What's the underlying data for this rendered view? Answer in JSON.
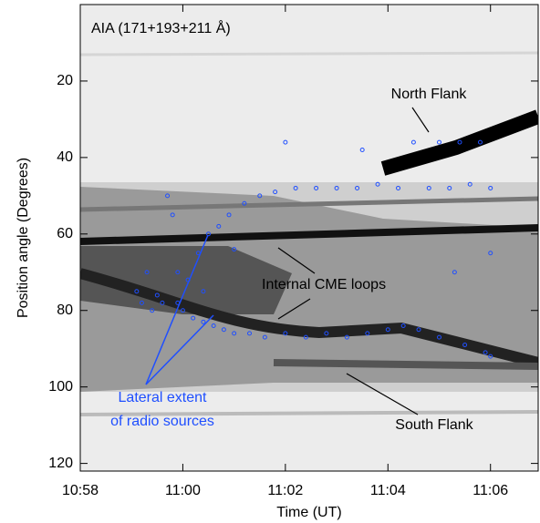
{
  "chart_data": {
    "type": "scatter",
    "title": "AIA (171+193+211 Å)",
    "x_label": "Time (UT)",
    "y_label": "Position angle (Degrees)",
    "annotations": [
      "North Flank",
      "Internal CME loops",
      "South Flank",
      "Lateral extent",
      "of radio sources"
    ],
    "color": "#1f4fff",
    "x": [
      59.1,
      59.2,
      59.3,
      59.4,
      59.5,
      59.6,
      59.7,
      59.8,
      59.9,
      60.0,
      60.1,
      60.2,
      60.3,
      60.4,
      60.5,
      60.6,
      60.7,
      60.8,
      60.9,
      61.0,
      61.2,
      61.3,
      61.5,
      61.6,
      61.8,
      62.0,
      62.2,
      62.4,
      62.6,
      62.8,
      63.0,
      63.2,
      63.4,
      63.6,
      63.8,
      64.0,
      64.2,
      64.3,
      64.5,
      64.6,
      64.8,
      65.0,
      65.0,
      65.2,
      65.4,
      65.5,
      65.6,
      65.8,
      65.9,
      66.0,
      66.0,
      62.0,
      63.5,
      65.3,
      66.0,
      61.0,
      59.9,
      60.4
    ],
    "values": [
      75,
      78,
      70,
      80,
      76,
      78,
      50,
      55,
      78,
      80,
      72,
      82,
      65,
      83,
      60,
      84,
      58,
      85,
      55,
      86,
      52,
      86,
      50,
      87,
      49,
      86,
      48,
      87,
      48,
      86,
      48,
      87,
      48,
      86,
      47,
      85,
      48,
      84,
      36,
      85,
      48,
      36,
      87,
      48,
      36,
      89,
      47,
      36,
      91,
      92,
      48,
      36,
      38,
      70,
      65,
      64,
      70,
      75
    ],
    "xlim": [
      58,
      66.93
    ],
    "ylim": [
      122,
      0
    ],
    "xticks": [
      {
        "value": 58,
        "label": "10:58"
      },
      {
        "value": 60,
        "label": "11:00"
      },
      {
        "value": 62,
        "label": "11:02"
      },
      {
        "value": 64,
        "label": "11:04"
      },
      {
        "value": 66,
        "label": "11:06"
      }
    ],
    "yticks": [
      20,
      40,
      60,
      80,
      100,
      120
    ]
  }
}
